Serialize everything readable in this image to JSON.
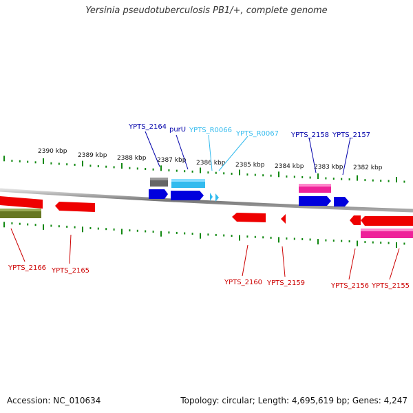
{
  "title": "Yersinia pseudotuberculosis PB1/+, complete genome",
  "footer": {
    "accession": "Accession: NC_010634",
    "summary": "Topology: circular; Length: 4,695,619 bp; Genes: 4,247"
  },
  "colors": {
    "grey_gene": "#666666",
    "cyan_gene": "#33bbee",
    "blue_gene": "#0000dd",
    "magenta_gene": "#ee2299",
    "red_gene": "#ee0000",
    "olive_gene": "#667722",
    "tick": "#118811",
    "blue_label": "#0000aa",
    "cyan_label": "#33bbee",
    "red_label": "#cc0000"
  },
  "scale_labels": [
    {
      "text": "2390 kbp"
    },
    {
      "text": "2389 kbp"
    },
    {
      "text": "2388 kbp"
    },
    {
      "text": "2387 kbp"
    },
    {
      "text": "2386 kbp"
    },
    {
      "text": "2385 kbp"
    },
    {
      "text": "2384 kbp"
    },
    {
      "text": "2383 kbp"
    },
    {
      "text": "2382 kbp"
    }
  ],
  "top_labels": [
    {
      "text": "YPTS_2164",
      "color": "blue_label"
    },
    {
      "text": "purU",
      "color": "blue_label"
    },
    {
      "text": "YPTS_R0066",
      "color": "cyan_label"
    },
    {
      "text": "YPTS_R0067",
      "color": "cyan_label"
    },
    {
      "text": "YPTS_2158",
      "color": "blue_label"
    },
    {
      "text": "YPTS_2157",
      "color": "blue_label"
    }
  ],
  "bottom_labels": [
    {
      "text": "YPTS_2166"
    },
    {
      "text": "YPTS_2165"
    },
    {
      "text": "YPTS_2160"
    },
    {
      "text": "YPTS_2159"
    },
    {
      "text": "YPTS_2156"
    },
    {
      "text": "YPTS_2155"
    }
  ]
}
